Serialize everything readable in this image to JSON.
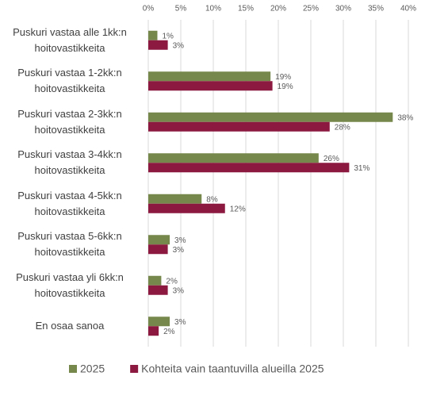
{
  "chart_data": {
    "type": "bar",
    "orientation": "horizontal",
    "categories": [
      "Puskuri vastaa alle 1kk:n hoitovastikkeita",
      "Puskuri vastaa 1-2kk:n hoitovastikkeita",
      "Puskuri vastaa 2-3kk:n hoitovastikkeita",
      "Puskuri vastaa 3-4kk:n hoitovastikkeita",
      "Puskuri vastaa 4-5kk:n hoitovastikkeita",
      "Puskuri vastaa 5-6kk:n hoitovastikkeita",
      "Puskuri vastaa yli 6kk:n hoitovastikkeita",
      "En osaa sanoa"
    ],
    "series": [
      {
        "name": "2025",
        "color": "#76884c",
        "values": [
          1.4,
          18.8,
          37.6,
          26.2,
          8.2,
          3.3,
          2.0,
          3.3
        ],
        "value_labels": [
          "1%",
          "19%",
          "38%",
          "26%",
          "8%",
          "3%",
          "2%",
          "3%"
        ]
      },
      {
        "name": "Kohteita vain taantuvilla alueilla 2025",
        "color": "#8c1a40",
        "values": [
          3.0,
          19.1,
          27.9,
          30.9,
          11.8,
          3.0,
          3.0,
          1.6
        ],
        "value_labels": [
          "3%",
          "19%",
          "28%",
          "31%",
          "12%",
          "3%",
          "3%",
          "2%"
        ]
      }
    ],
    "xlim": [
      0,
      40
    ],
    "xticks": [
      {
        "value": 0,
        "label": "0%"
      },
      {
        "value": 5,
        "label": "5%"
      },
      {
        "value": 10,
        "label": "10%"
      },
      {
        "value": 15,
        "label": "15%"
      },
      {
        "value": 20,
        "label": "20%"
      },
      {
        "value": 25,
        "label": "25%"
      },
      {
        "value": 30,
        "label": "30%"
      },
      {
        "value": 35,
        "label": "35%"
      },
      {
        "value": 40,
        "label": "40%"
      }
    ],
    "grid": true,
    "legend": "bottom"
  }
}
